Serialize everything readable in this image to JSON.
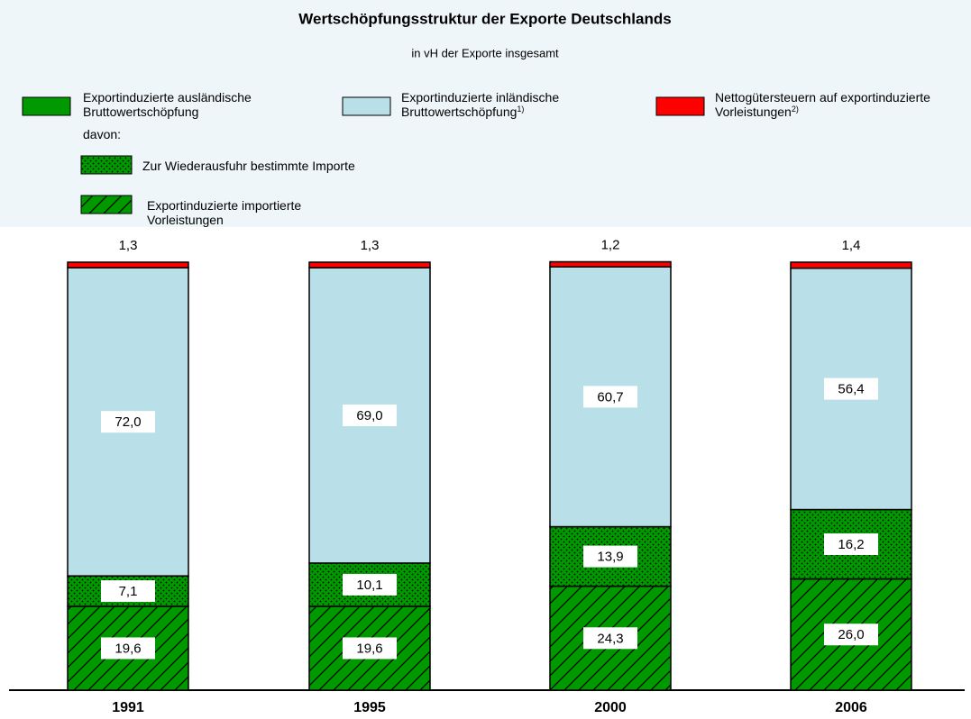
{
  "chart_data": {
    "type": "stacked_bar",
    "title": "Wertschöpfungsstruktur der Exporte Deutschlands",
    "subtitle": "in vH der Exporte insgesamt",
    "categories": [
      "1991",
      "1995",
      "2000",
      "2006"
    ],
    "ylim": [
      0,
      100
    ],
    "legend_group": {
      "name": "Exportinduzierte ausländische Bruttowertschöpfung",
      "color": "#009900",
      "note": "davon:"
    },
    "series": [
      {
        "name": "Exportinduzierte importierte Vorleistungen",
        "color": "#009900",
        "pattern": "hatch",
        "values": [
          19.6,
          19.6,
          24.3,
          26.0
        ],
        "value_labels": [
          "19,6",
          "19,6",
          "24,3",
          "26,0"
        ]
      },
      {
        "name": "Zur Wiederausfuhr bestimmte Importe",
        "color": "#009900",
        "pattern": "dots",
        "values": [
          7.1,
          10.1,
          13.9,
          16.2
        ],
        "value_labels": [
          "7,1",
          "10,1",
          "13,9",
          "16,2"
        ]
      },
      {
        "name": "Exportinduzierte inländische Bruttowertschöpfung",
        "footnote": "1)",
        "color": "#b9e0e8",
        "pattern": "solid",
        "values": [
          72.0,
          69.0,
          60.7,
          56.4
        ],
        "value_labels": [
          "72,0",
          "69,0",
          "60,7",
          "56,4"
        ]
      },
      {
        "name": "Nettogütersteuern auf exportinduzierte Vorleistungen",
        "footnote": "2)",
        "color": "#ff0000",
        "pattern": "solid",
        "values": [
          1.3,
          1.3,
          1.2,
          1.4
        ],
        "value_labels": [
          "1,3",
          "1,3",
          "1,2",
          "1,4"
        ]
      }
    ]
  }
}
